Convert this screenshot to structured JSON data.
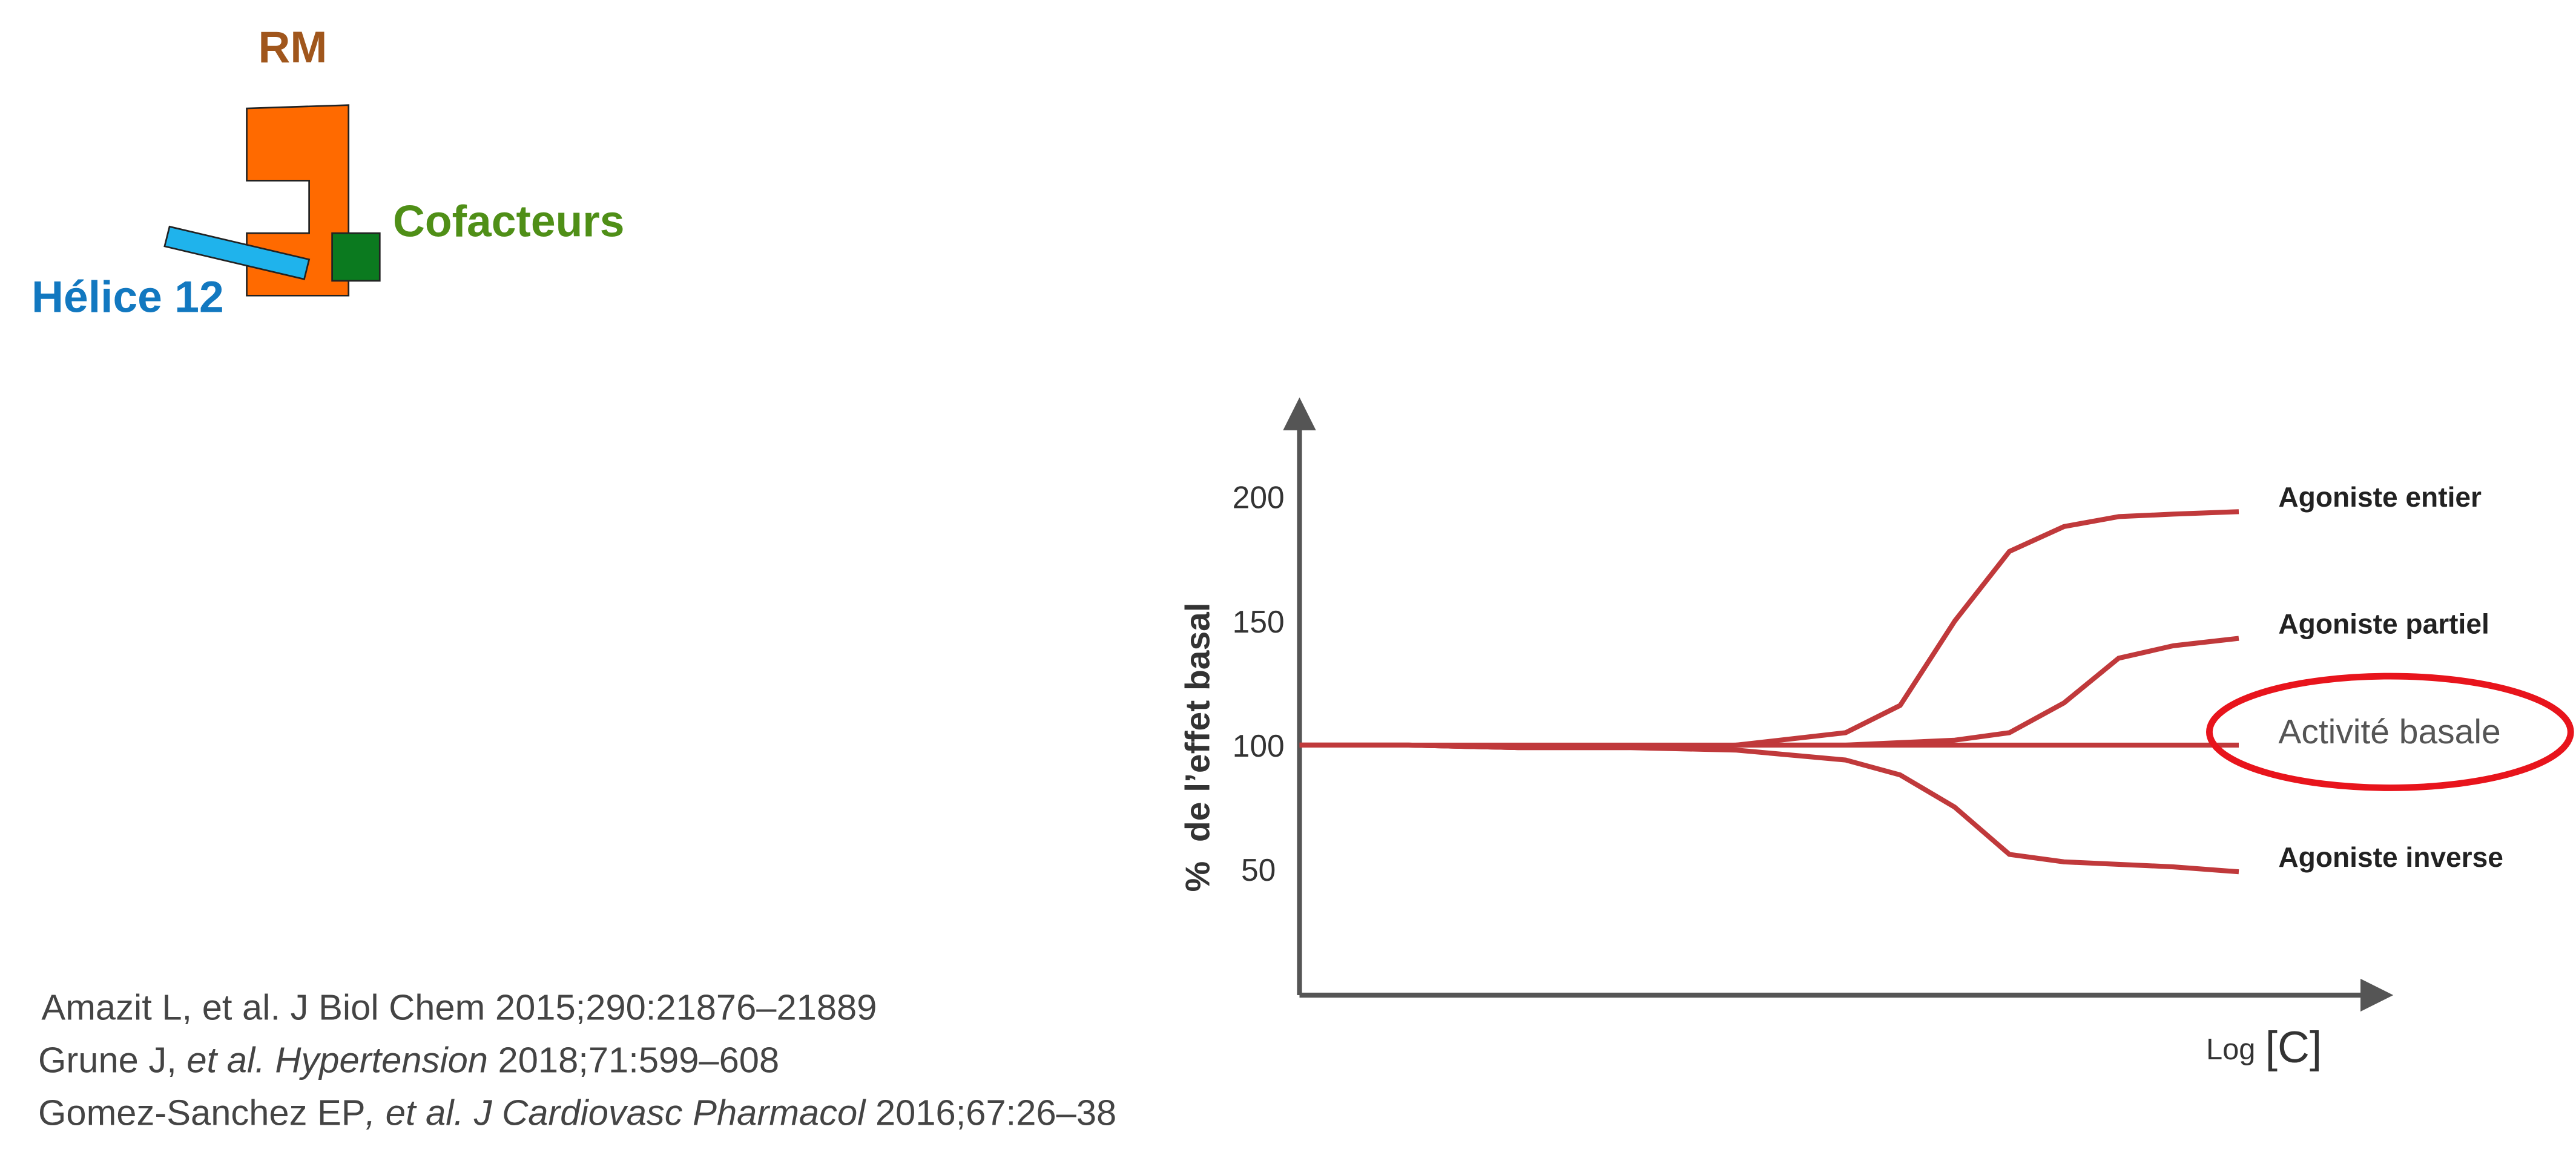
{
  "diagram": {
    "receptor": "RM",
    "cofactors": "Cofacteurs",
    "helix": "Hélice 12"
  },
  "references": [
    [
      "Amazit L, et al. J Biol Chem 2015;290:21876–21889"
    ],
    [
      "Grune J, ",
      "et al. Hypertension",
      " 2018;71:599–608"
    ],
    [
      "Gomez-Sanchez EP",
      ", et al. J Cardiovasc Pharmacol",
      " 2016;67:26–38"
    ]
  ],
  "chart_data": {
    "type": "line",
    "ylabel": "%  de l’effet basal",
    "xlabel": [
      "Log",
      "[C]"
    ],
    "x": [
      0,
      1,
      2,
      3,
      4,
      5,
      5.5,
      6,
      6.5,
      7,
      7.5,
      8,
      8.6
    ],
    "xlim": [
      0,
      10
    ],
    "ylim": [
      0,
      240
    ],
    "yticks": [
      50,
      100,
      150,
      200
    ],
    "highlight": "Activité basale",
    "series": [
      {
        "name": "Agoniste entier",
        "color": "#c0393b",
        "values": [
          100,
          100,
          99,
          99,
          100,
          105,
          116,
          150,
          178,
          188,
          192,
          193,
          194
        ]
      },
      {
        "name": "Agoniste partiel",
        "color": "#c0393b",
        "values": [
          100,
          100,
          99,
          99,
          100,
          100,
          101,
          102,
          105,
          117,
          135,
          140,
          143
        ]
      },
      {
        "name": "Activité basale",
        "color": "#c0393b",
        "values": [
          100,
          100,
          100,
          100,
          100,
          100,
          100,
          100,
          100,
          100,
          100,
          100,
          100
        ]
      },
      {
        "name": "Agoniste inverse",
        "color": "#c0393b",
        "values": [
          100,
          100,
          99,
          99,
          98,
          94,
          88,
          75,
          56,
          53,
          52,
          51,
          49
        ]
      }
    ]
  }
}
